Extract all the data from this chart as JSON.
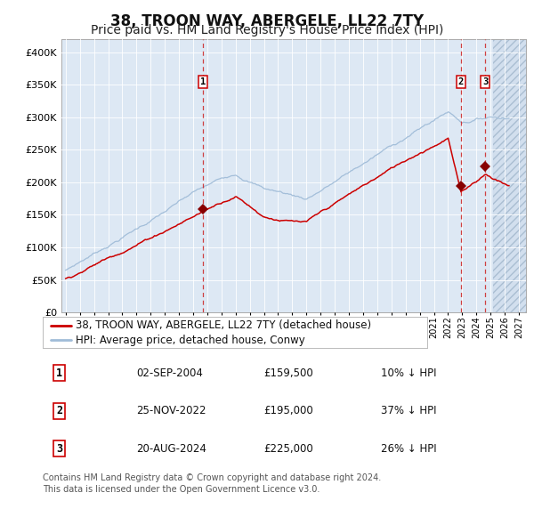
{
  "title": "38, TROON WAY, ABERGELE, LL22 7TY",
  "subtitle": "Price paid vs. HM Land Registry's House Price Index (HPI)",
  "xlim_start": 1994.7,
  "xlim_end": 2027.5,
  "ylim": [
    0,
    420000
  ],
  "yticks": [
    0,
    50000,
    100000,
    150000,
    200000,
    250000,
    300000,
    350000,
    400000
  ],
  "ytick_labels": [
    "£0",
    "£50K",
    "£100K",
    "£150K",
    "£200K",
    "£250K",
    "£300K",
    "£350K",
    "£400K"
  ],
  "bg_color": "#ffffff",
  "plot_bg_color": "#dde8f4",
  "hpi_color": "#a0bcd8",
  "price_color": "#cc0000",
  "sale_marker_color": "#880000",
  "dashed_line_color": "#cc2222",
  "legend_label_price": "38, TROON WAY, ABERGELE, LL22 7TY (detached house)",
  "legend_label_hpi": "HPI: Average price, detached house, Conwy",
  "sales": [
    {
      "num": 1,
      "date_year": 2004.67,
      "price": 159500,
      "label": "02-SEP-2004",
      "pct": "10%"
    },
    {
      "num": 2,
      "date_year": 2022.9,
      "price": 195000,
      "label": "25-NOV-2022",
      "pct": "37%"
    },
    {
      "num": 3,
      "date_year": 2024.63,
      "price": 225000,
      "label": "20-AUG-2024",
      "pct": "26%"
    }
  ],
  "footer": "Contains HM Land Registry data © Crown copyright and database right 2024.\nThis data is licensed under the Open Government Licence v3.0.",
  "title_fontsize": 12,
  "subtitle_fontsize": 10,
  "tick_fontsize": 8,
  "legend_fontsize": 8.5,
  "footer_fontsize": 7
}
